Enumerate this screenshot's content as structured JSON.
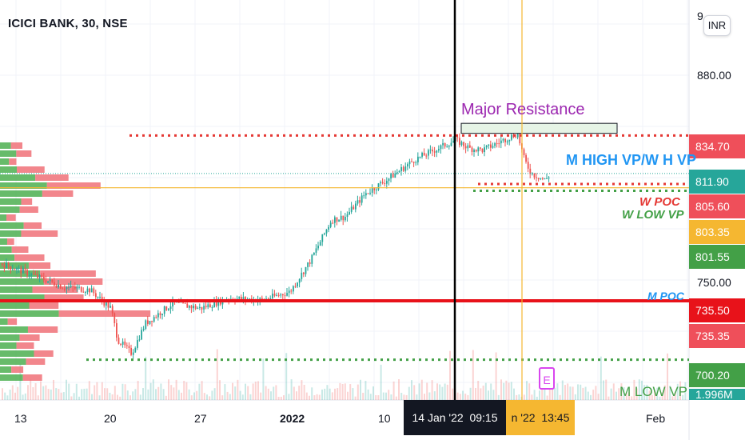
{
  "header": {
    "symbol_title": "ICICI BANK, 30, NSE",
    "currency_button": "INR"
  },
  "price_axis": {
    "ticks": [
      {
        "label": "880.00",
        "value": 880
      },
      {
        "label": "750.00",
        "value": 750
      }
    ],
    "top_partial_label": "9"
  },
  "price_labels": [
    {
      "id": "m-high-vp",
      "text": "834.70",
      "value": 834.7,
      "color": "#ef4f5a"
    },
    {
      "id": "last-price",
      "text": "811.90",
      "value": 811.9,
      "color": "#26a69a"
    },
    {
      "id": "w-poc",
      "text": "805.60",
      "value": 805.6,
      "color": "#ef4f5a"
    },
    {
      "id": "crosshair",
      "text": "803.35",
      "value": 803.35,
      "color": "#f5b731"
    },
    {
      "id": "w-low-vp",
      "text": "801.55",
      "value": 801.55,
      "color": "#43a047"
    },
    {
      "id": "m-poc",
      "text": "735.50",
      "value": 735.5,
      "color": "#e8121a"
    },
    {
      "id": "low-2",
      "text": "735.35",
      "value": 735.35,
      "color": "#ef4f5a"
    },
    {
      "id": "m-low-vp",
      "text": "700.20",
      "value": 700.2,
      "color": "#43a047"
    },
    {
      "id": "volume",
      "text": "1.996M",
      "value": 1.996,
      "color": "#26a69a"
    }
  ],
  "time_axis": {
    "labels": [
      "13",
      "20",
      "27",
      "2022",
      "10",
      "Feb"
    ],
    "crosshair_black": "14 Jan '22  09:15",
    "crosshair_orange": "n '22  13:45"
  },
  "annotations": {
    "major_resistance": "Major Resistance",
    "m_high_vp": "M HIGH VP/W H VP",
    "w_poc": "W POC",
    "w_low_vp": "W LOW VP",
    "m_poc": "M POC",
    "m_low_vp": "M LOW VP",
    "earnings_marker": "E"
  },
  "colors": {
    "up": "#26a69a",
    "down": "#ef5350",
    "profile_buy": "#4caf50",
    "profile_sell": "#f07178",
    "m_poc_line": "#e8121a",
    "red_dotted": "#e53935",
    "green_dotted": "#43a047",
    "crosshair_orange": "#f5b731",
    "crosshair_black": "#000000"
  },
  "chart_data": {
    "type": "candlestick",
    "title": "ICICI BANK, 30, NSE",
    "interval": "30 min",
    "ylim": [
      676,
      916
    ],
    "price_path": [
      [
        0,
        758
      ],
      [
        0.04,
        752
      ],
      [
        0.09,
        744
      ],
      [
        0.13,
        742
      ],
      [
        0.16,
        731
      ],
      [
        0.17,
        712
      ],
      [
        0.19,
        704
      ],
      [
        0.21,
        722
      ],
      [
        0.25,
        734
      ],
      [
        0.29,
        731
      ],
      [
        0.33,
        737
      ],
      [
        0.38,
        736
      ],
      [
        0.42,
        741
      ],
      [
        0.45,
        760
      ],
      [
        0.48,
        784
      ],
      [
        0.5,
        786
      ],
      [
        0.53,
        800
      ],
      [
        0.56,
        808
      ],
      [
        0.6,
        820
      ],
      [
        0.63,
        826
      ],
      [
        0.66,
        832
      ],
      [
        0.68,
        827
      ],
      [
        0.7,
        826
      ],
      [
        0.73,
        832
      ],
      [
        0.75,
        836
      ],
      [
        0.76,
        820
      ],
      [
        0.77,
        812
      ],
      [
        0.79,
        808
      ],
      [
        0.8,
        812
      ],
      [
        0.81,
        810
      ]
    ],
    "levels": [
      {
        "name": "M HIGH VP/W H VP",
        "value": 834.7
      },
      {
        "name": "W POC",
        "value": 805.6
      },
      {
        "name": "W LOW VP",
        "value": 801.55
      },
      {
        "name": "M POC",
        "value": 735.5
      },
      {
        "name": "M LOW VP",
        "value": 700.2
      }
    ],
    "resistance_zone": {
      "name": "Major Resistance",
      "from": 836,
      "to": 842
    }
  }
}
